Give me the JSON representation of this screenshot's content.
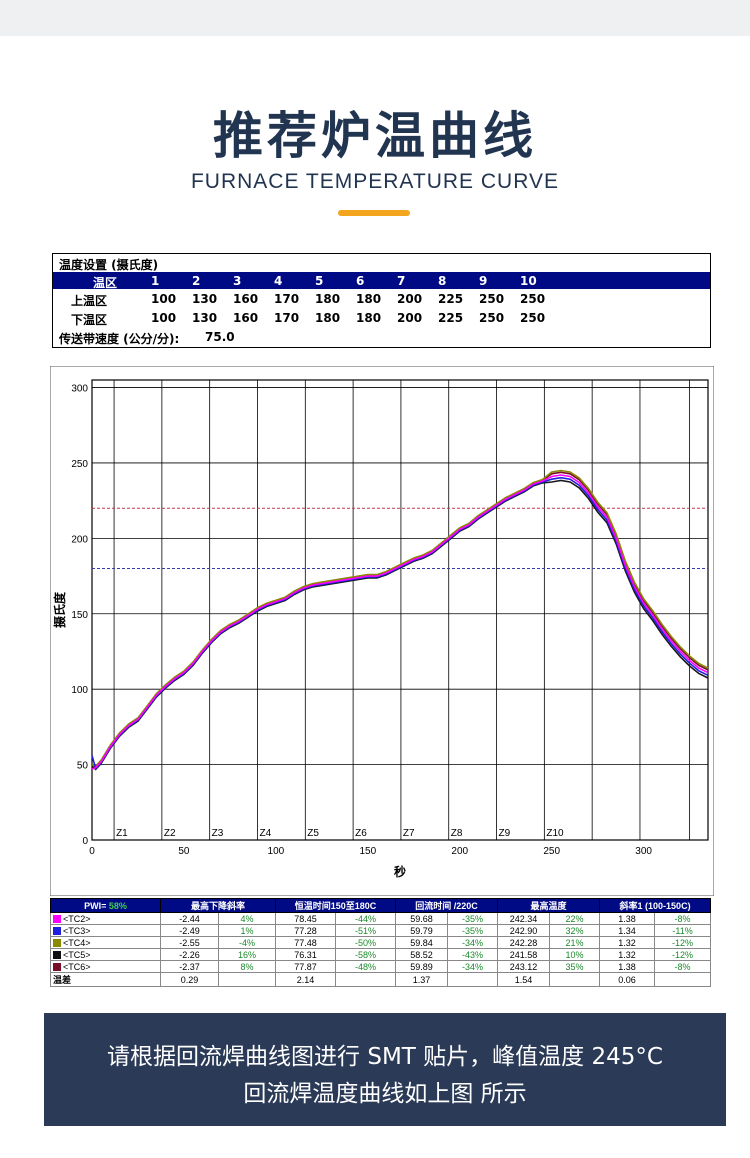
{
  "header": {
    "title": "推荐炉温曲线",
    "subtitle": "FURNACE TEMPERATURE CURVE",
    "accent_color": "#f3a51d"
  },
  "settings": {
    "title": "温度设置 (摄氏度)",
    "zone_label": "温区",
    "zones": [
      "1",
      "2",
      "3",
      "4",
      "5",
      "6",
      "7",
      "8",
      "9",
      "10"
    ],
    "upper_label": "上温区",
    "upper": [
      "100",
      "130",
      "160",
      "170",
      "180",
      "180",
      "200",
      "225",
      "250",
      "250"
    ],
    "lower_label": "下温区",
    "lower": [
      "100",
      "130",
      "160",
      "170",
      "180",
      "180",
      "200",
      "225",
      "250",
      "250"
    ],
    "speed_label": "传送带速度 (公分/分):",
    "speed_value": "75.0"
  },
  "chart_data": {
    "type": "line",
    "xlabel": "秒",
    "ylabel": "摄氏度",
    "xlim": [
      0,
      335
    ],
    "ylim": [
      0,
      305
    ],
    "x_ticks": [
      0,
      50,
      100,
      150,
      200,
      250,
      300
    ],
    "y_ticks": [
      0,
      50,
      100,
      150,
      200,
      250,
      300
    ],
    "reference_lines": [
      {
        "y": 220,
        "color": "#c0394a"
      },
      {
        "y": 180,
        "color": "#3a3aa8"
      }
    ],
    "zone_boundaries": [
      {
        "label": "Z1",
        "x": 12
      },
      {
        "label": "Z2",
        "x": 38
      },
      {
        "label": "Z3",
        "x": 64
      },
      {
        "label": "Z4",
        "x": 90
      },
      {
        "label": "Z5",
        "x": 116
      },
      {
        "label": "Z6",
        "x": 142
      },
      {
        "label": "Z7",
        "x": 168
      },
      {
        "label": "Z8",
        "x": 194
      },
      {
        "label": "Z9",
        "x": 220
      },
      {
        "label": "Z10",
        "x": 246
      }
    ],
    "extra_gridlines_x": [
      272,
      298,
      325
    ],
    "series": [
      {
        "name": "<TC2>",
        "color": "#ff00ff",
        "offset": 0,
        "x": [
          0,
          2,
          5,
          10,
          15,
          20,
          25,
          30,
          35,
          40,
          45,
          50,
          55,
          60,
          65,
          70,
          75,
          80,
          85,
          90,
          95,
          100,
          105,
          110,
          115,
          120,
          125,
          130,
          135,
          140,
          145,
          150,
          155,
          160,
          165,
          170,
          175,
          180,
          185,
          190,
          195,
          200,
          205,
          210,
          215,
          220,
          225,
          230,
          235,
          240,
          245,
          250,
          255,
          260,
          265,
          270,
          275,
          280,
          285,
          290,
          295,
          300,
          305,
          310,
          315,
          320,
          325,
          330,
          335
        ],
        "y": [
          47,
          48,
          52,
          62,
          70,
          76,
          80,
          88,
          96,
          102,
          107,
          111,
          117,
          125,
          132,
          138,
          142,
          145,
          149,
          153,
          156,
          158,
          160,
          164,
          167,
          169,
          170,
          171,
          172,
          173,
          174,
          175,
          175,
          177,
          180,
          183,
          186,
          188,
          191,
          196,
          201,
          206,
          209,
          214,
          218,
          222,
          226,
          229,
          232,
          236,
          238,
          241,
          242,
          241,
          237,
          230,
          221,
          214,
          200,
          182,
          168,
          157,
          149,
          140,
          132,
          125,
          119,
          114,
          111
        ]
      },
      {
        "name": "<TC3>",
        "color": "#1f1fe0",
        "offset": -0.6,
        "x": [
          0
        ],
        "y": [
          56
        ]
      },
      {
        "name": "<TC4>",
        "color": "#8a8a00",
        "offset": 1.0,
        "x": [
          0
        ],
        "y": [
          50
        ]
      },
      {
        "name": "<TC5>",
        "color": "#1a1a1a",
        "offset": -1.2,
        "x": [
          0
        ],
        "y": [
          49
        ]
      },
      {
        "name": "<TC6>",
        "color": "#7a0f2a",
        "offset": 0.6,
        "x": [
          0
        ],
        "y": [
          48
        ]
      }
    ]
  },
  "results": {
    "pwi_label": "PWI=",
    "pwi_value": "58%",
    "headers": [
      "最高下降斜率",
      "恒温时间150至180C",
      "回流时间 /220C",
      "最高温度",
      "斜率1 (100-150C)"
    ],
    "rows": [
      {
        "name": "<TC2>",
        "color": "#ff00ff",
        "cells": [
          "-2.44",
          "4%",
          "78.45",
          "-44%",
          "59.68",
          "-35%",
          "242.34",
          "22%",
          "1.38",
          "-8%"
        ]
      },
      {
        "name": "<TC3>",
        "color": "#1f1fe0",
        "cells": [
          "-2.49",
          "1%",
          "77.28",
          "-51%",
          "59.79",
          "-35%",
          "242.90",
          "32%",
          "1.34",
          "-11%"
        ]
      },
      {
        "name": "<TC4>",
        "color": "#8a8a00",
        "cells": [
          "-2.55",
          "-4%",
          "77.48",
          "-50%",
          "59.84",
          "-34%",
          "242.28",
          "21%",
          "1.32",
          "-12%"
        ]
      },
      {
        "name": "<TC5>",
        "color": "#111111",
        "cells": [
          "-2.26",
          "16%",
          "76.31",
          "-58%",
          "58.52",
          "-43%",
          "241.58",
          "10%",
          "1.32",
          "-12%"
        ]
      },
      {
        "name": "<TC6>",
        "color": "#7a0f2a",
        "cells": [
          "-2.37",
          "8%",
          "77.87",
          "-48%",
          "59.89",
          "-34%",
          "243.12",
          "35%",
          "1.38",
          "-8%"
        ]
      }
    ],
    "diff_label": "温差",
    "diff": [
      "0.29",
      "",
      "2.14",
      "",
      "1.37",
      "",
      "1.54",
      "",
      "0.06",
      ""
    ]
  },
  "banner": {
    "line1": "请根据回流焊曲线图进行 SMT 贴片，峰值温度 245°C",
    "line2": "回流焊温度曲线如上图 所示",
    "bg_color": "#2b3a57"
  }
}
